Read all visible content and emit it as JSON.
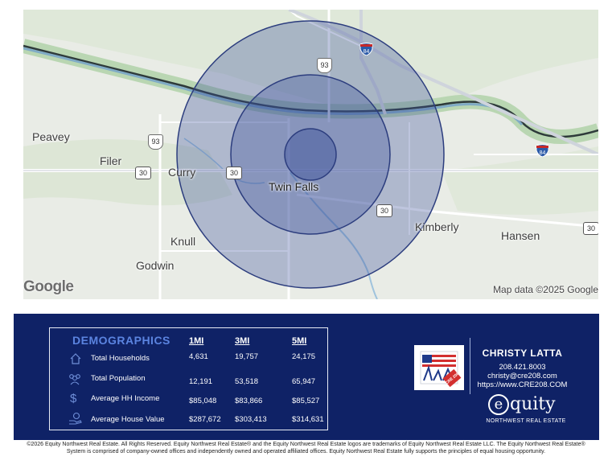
{
  "map": {
    "places": {
      "peavey": "Peavey",
      "filer": "Filer",
      "curry": "Curry",
      "twin_falls": "Twin Falls",
      "knull": "Knull",
      "godwin": "Godwin",
      "kimberly": "Kimberly",
      "hansen": "Hansen"
    },
    "routes": {
      "i84_a": "84",
      "i84_b": "84",
      "us93_a": "93",
      "us93_b": "93",
      "us30_a": "30",
      "us30_b": "30",
      "us30_c": "30",
      "us30_d": "30"
    },
    "google_logo": "Google",
    "attribution": "Map data ©2025 Google",
    "ring_color": "#3b4f9a",
    "river_color": "#7aa6c8"
  },
  "demographics": {
    "title": "DEMOGRAPHICS",
    "columns": [
      "1MI",
      "3MI",
      "5MI"
    ],
    "rows": [
      {
        "icon": "house-icon",
        "label": "Total Households",
        "values": [
          "4,631",
          "19,757",
          "24,175"
        ]
      },
      {
        "icon": "people-icon",
        "label": "Total Population",
        "values": [
          "12,191",
          "53,518",
          "65,947"
        ]
      },
      {
        "icon": "dollar-icon",
        "label": "Average HH Income",
        "values": [
          "$85,048",
          "$83,866",
          "$85,527"
        ]
      },
      {
        "icon": "hand-coin-icon",
        "label": "Average House Value",
        "values": [
          "$287,672",
          "$303,413",
          "$314,631"
        ]
      }
    ]
  },
  "agent": {
    "name": "CHRISTY LATTA",
    "phone": "208.421.8003",
    "email": "christy@cre208.com",
    "website": "https://www.CRE208.COM",
    "logo_text": "CRE 208"
  },
  "brand": {
    "name": "quity",
    "initial": "e",
    "subtitle": "NORTHWEST REAL ESTATE"
  },
  "footer": {
    "line1": "©2026 Equity Northwest Real Estate. All Rights Reserved. Equity Northwest Real Estate® and the Equity Northwest Real Estate logos are trademarks of Equity Northwest Real Estate LLC. The Equity Northwest Real Estate®",
    "line2": "System is comprised of company-owned offices and independently owned and operated affiliated offices. Equity Northwest Real Estate fully supports the principles of equal housing opportunity."
  },
  "colors": {
    "panel": "#0f2266",
    "accent_title": "#5b84e0"
  }
}
